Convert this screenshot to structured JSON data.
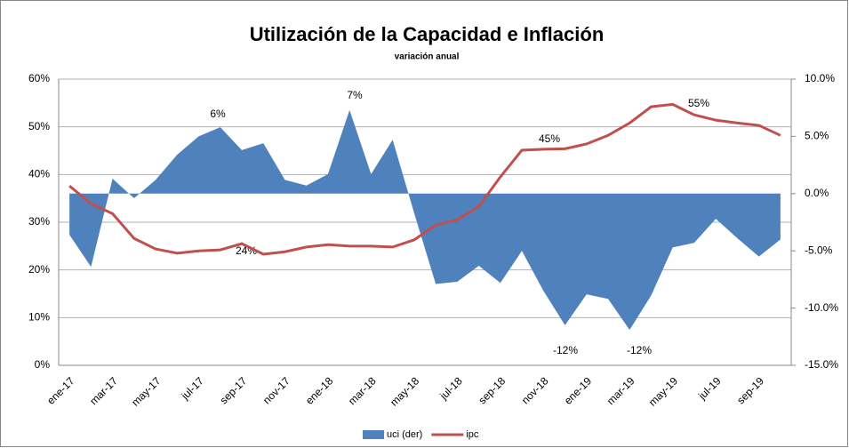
{
  "chart_data": {
    "type": "line-area",
    "title": "Utilización de la Capacidad e Inflación",
    "subtitle": "variación anual",
    "categories": [
      "ene-17",
      null,
      "mar-17",
      null,
      "may-17",
      null,
      "jul-17",
      null,
      "sep-17",
      null,
      "nov-17",
      null,
      "ene-18",
      null,
      "mar-18",
      null,
      "may-18",
      null,
      "jul-18",
      null,
      "sep-18",
      null,
      "nov-18",
      null,
      "ene-19",
      null,
      "mar-19",
      null,
      "may-19",
      null,
      "jul-19",
      null,
      "sep-19",
      null
    ],
    "series": [
      {
        "name": "uci (der)",
        "color": "#4f81bd",
        "axis": "y2",
        "values": [
          -3.6,
          -6.4,
          1.3,
          -0.4,
          1.2,
          3.4,
          5.0,
          5.8,
          3.8,
          4.4,
          1.2,
          0.7,
          1.7,
          7.3,
          1.7,
          4.7,
          -1.7,
          -7.9,
          -7.7,
          -6.3,
          -7.8,
          -5.0,
          -8.5,
          -11.5,
          -8.8,
          -9.2,
          -11.9,
          -8.9,
          -4.7,
          -4.3,
          -2.2,
          -3.9,
          -5.5,
          -4.0
        ]
      },
      {
        "name": "ipc",
        "color": "#c0504d",
        "values": [
          37.6,
          33.9,
          31.8,
          26.6,
          24.4,
          23.5,
          24.0,
          24.2,
          25.5,
          23.3,
          23.8,
          24.8,
          25.3,
          25.0,
          25.0,
          24.8,
          26.3,
          29.4,
          30.5,
          33.3,
          39.5,
          45.1,
          45.3,
          45.4,
          46.4,
          48.2,
          50.8,
          54.2,
          54.7,
          52.5,
          51.4,
          50.8,
          50.3,
          48.2
        ]
      }
    ],
    "ylim": [
      0,
      60
    ],
    "yticks": [
      {
        "value": 0,
        "label": "0%"
      },
      {
        "value": 10,
        "label": "10%"
      },
      {
        "value": 20,
        "label": "20%"
      },
      {
        "value": 30,
        "label": "30%"
      },
      {
        "value": 40,
        "label": "40%"
      },
      {
        "value": 50,
        "label": "50%"
      },
      {
        "value": 60,
        "label": "60%"
      }
    ],
    "y2lim": [
      -15,
      10
    ],
    "y2ticks": [
      {
        "value": -15,
        "label": "-15.0%"
      },
      {
        "value": -10,
        "label": "-10.0%"
      },
      {
        "value": -5,
        "label": "-5.0%"
      },
      {
        "value": 0,
        "label": "0.0%"
      },
      {
        "value": 5,
        "label": "5.0%"
      },
      {
        "value": 10,
        "label": "10.0%"
      }
    ],
    "grid": true,
    "legend": "bottom",
    "annotations": [
      "6%",
      "7%",
      "24%",
      "45%",
      "55%",
      "-12%",
      "-12%"
    ]
  }
}
